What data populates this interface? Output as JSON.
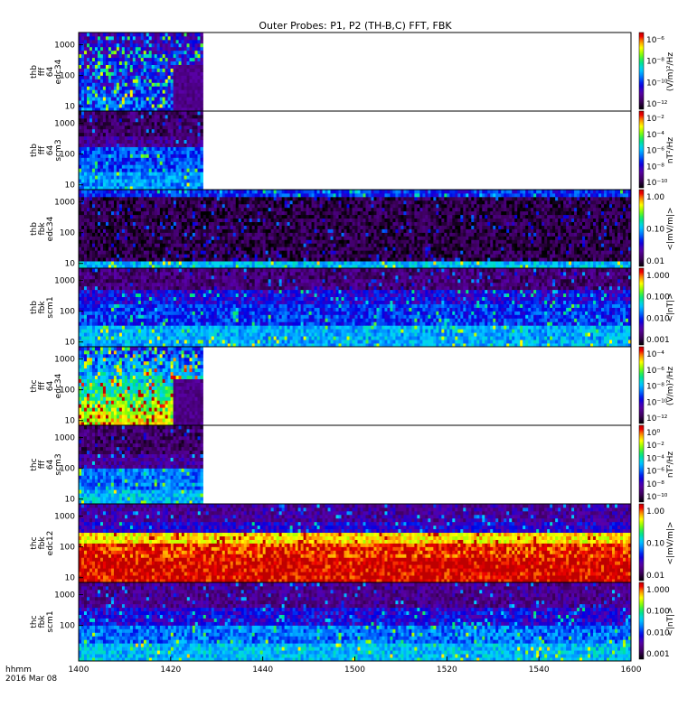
{
  "title": "Outer Probes: P1, P2 (TH-B,C) FFT, FBK",
  "footer": {
    "label": "hhmm",
    "date": "2016 Mar 08"
  },
  "x_axis": {
    "ticks": [
      "1400",
      "1420",
      "1440",
      "1500",
      "1520",
      "1540",
      "1600"
    ]
  },
  "chart_data": {
    "type": "heatmap",
    "title": "Outer Probes: P1, P2 (TH-B,C) FFT, FBK",
    "x": {
      "label": "hhmm",
      "range": [
        "14:00",
        "16:00"
      ],
      "tick_labels": [
        "1400",
        "1420",
        "1440",
        "1500",
        "1520",
        "1540",
        "1600"
      ]
    },
    "panels": [
      {
        "ylabel": [
          "thb",
          "fff",
          "64",
          "edc34"
        ],
        "yscale": "log",
        "ytick_labels": [
          "10",
          "100",
          "1000"
        ],
        "colorbar": {
          "label": "(V/m)²/Hz",
          "scale": "log",
          "tick_labels": [
            "10⁻¹²",
            "10⁻¹⁰",
            "10⁻⁸",
            "10⁻⁶"
          ]
        },
        "data_extent": "14:00–14:27",
        "pattern": "bursty"
      },
      {
        "ylabel": [
          "thb",
          "fff",
          "64",
          "scm3"
        ],
        "yscale": "log",
        "ytick_labels": [
          "10",
          "100",
          "1000"
        ],
        "colorbar": {
          "label": "nT²/Hz",
          "scale": "log",
          "tick_labels": [
            "10⁻¹⁰",
            "10⁻⁸",
            "10⁻⁶",
            "10⁻⁴",
            "10⁻²"
          ]
        },
        "data_extent": "14:00–14:27",
        "pattern": "scm"
      },
      {
        "ylabel": [
          "thb",
          "fbk",
          "edc34"
        ],
        "yscale": "log",
        "ytick_labels": [
          "10",
          "100",
          "1000"
        ],
        "colorbar": {
          "label": "<|mV/m|>",
          "scale": "log",
          "tick_labels": [
            "0.01",
            "0.10",
            "1.00"
          ]
        },
        "data_extent": "14:00–16:00",
        "pattern": "dark"
      },
      {
        "ylabel": [
          "thb",
          "fbk",
          "scm1"
        ],
        "yscale": "log",
        "ytick_labels": [
          "10",
          "100",
          "1000"
        ],
        "colorbar": {
          "label": "<|nT|>",
          "scale": "log",
          "tick_labels": [
            "0.001",
            "0.010",
            "0.100",
            "1.000"
          ]
        },
        "data_extent": "14:00–16:00",
        "pattern": "blue"
      },
      {
        "ylabel": [
          "thc",
          "fff",
          "64",
          "edc34"
        ],
        "yscale": "log",
        "ytick_labels": [
          "10",
          "100",
          "1000"
        ],
        "colorbar": {
          "label": "(V/m)²/Hz",
          "scale": "log",
          "tick_labels": [
            "10⁻¹²",
            "10⁻¹⁰",
            "10⁻⁸",
            "10⁻⁶",
            "10⁻⁴"
          ]
        },
        "data_extent": "14:00–14:27",
        "pattern": "bursty-bright"
      },
      {
        "ylabel": [
          "thc",
          "fff",
          "64",
          "scm3"
        ],
        "yscale": "log",
        "ytick_labels": [
          "10",
          "100",
          "1000"
        ],
        "colorbar": {
          "label": "nT²/Hz",
          "scale": "log",
          "tick_labels": [
            "10⁻¹⁰",
            "10⁻⁸",
            "10⁻⁶",
            "10⁻⁴",
            "10⁻²",
            "10⁰"
          ]
        },
        "data_extent": "14:00–14:27",
        "pattern": "scm2"
      },
      {
        "ylabel": [
          "thc",
          "fbk",
          "edc12"
        ],
        "yscale": "log",
        "ytick_labels": [
          "10",
          "100",
          "1000"
        ],
        "colorbar": {
          "label": "<|mV/m|>",
          "scale": "log",
          "tick_labels": [
            "0.01",
            "0.10",
            "1.00"
          ]
        },
        "data_extent": "14:00–16:00",
        "pattern": "hot"
      },
      {
        "ylabel": [
          "thc",
          "fbk",
          "scm1"
        ],
        "yscale": "log",
        "ytick_labels": [
          "100",
          "1000"
        ],
        "colorbar": {
          "label": "<|nT|>",
          "scale": "log",
          "tick_labels": [
            "0.001",
            "0.010",
            "0.100",
            "1.000"
          ]
        },
        "data_extent": "14:00–16:00",
        "pattern": "blue2"
      }
    ]
  }
}
